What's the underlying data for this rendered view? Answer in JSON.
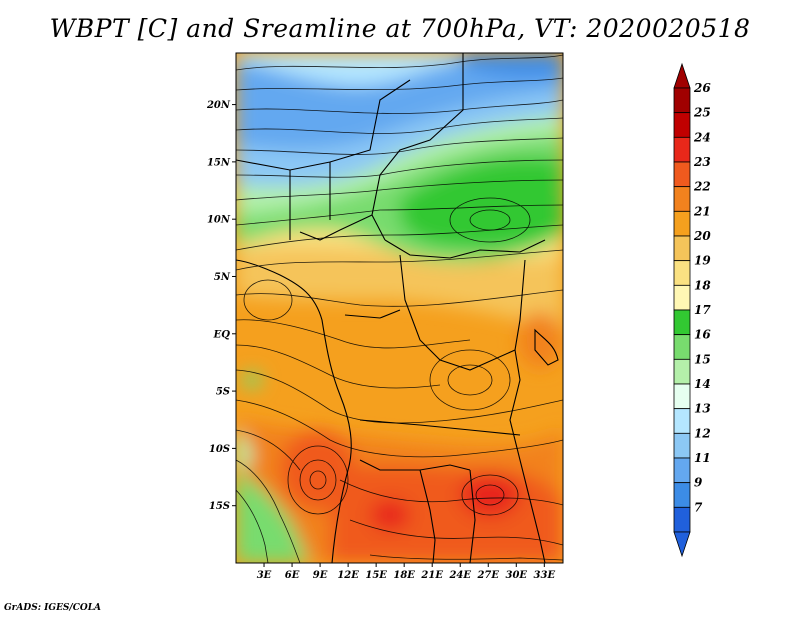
{
  "title": "WBPT [C] and Sreamline at 700hPa, VT: 2020020518",
  "credit": "GrADS: IGES/COLA",
  "map": {
    "lon_range": [
      0,
      35
    ],
    "lat_range": [
      -20,
      24.5
    ],
    "lat_ticks": [
      {
        "lat": 20,
        "label": "20N"
      },
      {
        "lat": 15,
        "label": "15N"
      },
      {
        "lat": 10,
        "label": "10N"
      },
      {
        "lat": 5,
        "label": "5N"
      },
      {
        "lat": 0,
        "label": "EQ"
      },
      {
        "lat": -5,
        "label": "5S"
      },
      {
        "lat": -10,
        "label": "10S"
      },
      {
        "lat": -15,
        "label": "15S"
      }
    ],
    "lon_ticks": [
      {
        "lon": 3,
        "label": "3E"
      },
      {
        "lon": 6,
        "label": "6E"
      },
      {
        "lon": 9,
        "label": "9E"
      },
      {
        "lon": 12,
        "label": "12E"
      },
      {
        "lon": 15,
        "label": "15E"
      },
      {
        "lon": 18,
        "label": "18E"
      },
      {
        "lon": 21,
        "label": "21E"
      },
      {
        "lon": 24,
        "label": "24E"
      },
      {
        "lon": 27,
        "label": "27E"
      },
      {
        "lon": 30,
        "label": "30E"
      },
      {
        "lon": 33,
        "label": "33E"
      }
    ]
  },
  "colorbar": {
    "levels": [
      {
        "label": "26",
        "color": "#a00000"
      },
      {
        "label": "25",
        "color": "#c00000"
      },
      {
        "label": "24",
        "color": "#e8281a"
      },
      {
        "label": "23",
        "color": "#f05a1e"
      },
      {
        "label": "22",
        "color": "#f2821e"
      },
      {
        "label": "21",
        "color": "#f5a01e"
      },
      {
        "label": "20",
        "color": "#f5c45a"
      },
      {
        "label": "19",
        "color": "#fae182"
      },
      {
        "label": "18",
        "color": "#fff7b4"
      },
      {
        "label": "17",
        "color": "#32c832"
      },
      {
        "label": "16",
        "color": "#78dc6e"
      },
      {
        "label": "15",
        "color": "#b4f0aa"
      },
      {
        "label": "14",
        "color": "#e6fff0"
      },
      {
        "label": "13",
        "color": "#b4e6ff"
      },
      {
        "label": "12",
        "color": "#8cc8f5"
      },
      {
        "label": "11",
        "color": "#64a8f0"
      },
      {
        "label": "9",
        "color": "#3c8ce6"
      },
      {
        "label": "7",
        "color": "#2060dc"
      }
    ],
    "bottom_color": "#2060dc"
  }
}
